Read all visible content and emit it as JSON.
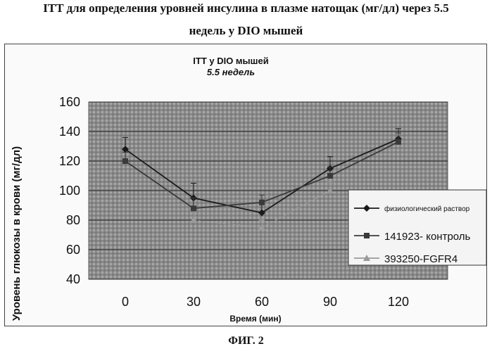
{
  "header": {
    "title_line1": "ITT для определения уровней инсулина в плазме натощак (мг/дл) через 5.5",
    "title_line2": "недель у DIO мышей"
  },
  "caption": "ФИГ. 2",
  "chart_data": {
    "type": "line",
    "title": "ITT у DIO мышей",
    "subtitle": "5.5 недель",
    "xlabel": "Время (мин)",
    "ylabel": "Уровень глюкозы в крови (мг/дл)",
    "x": [
      0,
      30,
      60,
      90,
      120
    ],
    "x_tick_labels": [
      "0",
      "30",
      "60",
      "90",
      "120"
    ],
    "y_tick_labels": [
      "40",
      "60",
      "80",
      "100",
      "120",
      "140",
      "160"
    ],
    "xlim": [
      0,
      120
    ],
    "ylim": [
      40,
      160
    ],
    "grid": true,
    "legend_position": "right",
    "series": [
      {
        "name": "физиологический раствор",
        "marker": "diamond",
        "color": "#1a1a1a",
        "values": [
          128,
          95,
          85,
          115,
          135
        ],
        "error": [
          8,
          10,
          6,
          8,
          7
        ]
      },
      {
        "name": "141923- контроль",
        "marker": "square",
        "color": "#3a3a3a",
        "values": [
          120,
          88,
          92,
          110,
          133
        ],
        "error": [
          6,
          7,
          5,
          6,
          6
        ]
      },
      {
        "name": "393250-FGFR4",
        "marker": "triangle",
        "color": "#9a9a9a",
        "values": [
          null,
          80,
          75,
          100,
          null
        ],
        "error": [
          null,
          5,
          5,
          6,
          null
        ]
      }
    ]
  }
}
